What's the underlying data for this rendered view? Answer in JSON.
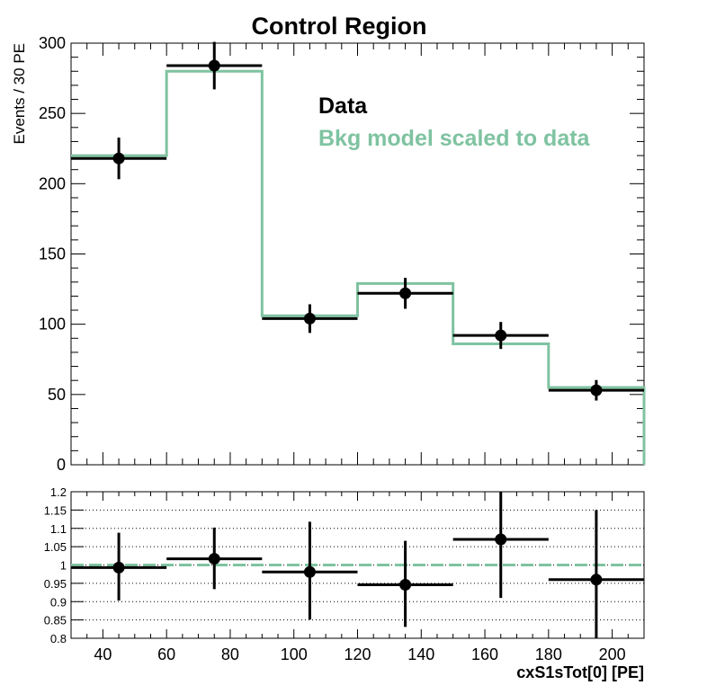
{
  "chart_data": [
    {
      "type": "line",
      "title": "Control Region",
      "ylabel": "Events / 30 PE",
      "xlabel": "",
      "xlim": [
        30,
        210
      ],
      "ylim": [
        0,
        300
      ],
      "x_ticks": [],
      "y_ticks": [
        "0",
        "50",
        "100",
        "150",
        "200",
        "250",
        "300"
      ],
      "legend_placement": "top-right",
      "legend": [
        {
          "label": "Data",
          "color": "#000000"
        },
        {
          "label": "Bkg model scaled to data",
          "color": "#7fc3a1"
        }
      ],
      "series": [
        {
          "name": "Data",
          "style": "points-with-errors",
          "color": "#000000",
          "bins": [
            {
              "x": 45,
              "xlo": 30,
              "xhi": 60,
              "y": 218,
              "err": 14.8
            },
            {
              "x": 75,
              "xlo": 60,
              "xhi": 90,
              "y": 284,
              "err": 16.9
            },
            {
              "x": 105,
              "xlo": 90,
              "xhi": 120,
              "y": 104,
              "err": 10.2
            },
            {
              "x": 135,
              "xlo": 120,
              "xhi": 150,
              "y": 122,
              "err": 11.0
            },
            {
              "x": 165,
              "xlo": 150,
              "xhi": 180,
              "y": 92,
              "err": 9.6
            },
            {
              "x": 195,
              "xlo": 180,
              "xhi": 210,
              "y": 53,
              "err": 7.3
            }
          ]
        },
        {
          "name": "Bkg model scaled to data",
          "style": "step-histogram",
          "color": "#7fc3a1",
          "edges": [
            30,
            60,
            90,
            120,
            150,
            180,
            210
          ],
          "values": [
            220,
            280,
            106,
            129,
            86,
            55
          ]
        }
      ]
    },
    {
      "type": "scatter",
      "title": "",
      "xlabel": "cxS1sTot[0]  [PE]",
      "ylabel": "",
      "xlim": [
        30,
        210
      ],
      "ylim": [
        0.8,
        1.2
      ],
      "x_ticks": [
        "40",
        "60",
        "80",
        "100",
        "120",
        "140",
        "160",
        "180",
        "200"
      ],
      "y_ticks": [
        "0.8",
        "0.85",
        "0.9",
        "0.95",
        "1",
        "1.05",
        "1.1",
        "1.15",
        "1.2"
      ],
      "grid": true,
      "reference_line": {
        "y": 1.0,
        "color": "#7fc3a1",
        "style": "dashed"
      },
      "series": [
        {
          "name": "",
          "color": "#000000",
          "bins": [
            {
              "x": 45,
              "xlo": 30,
              "xhi": 60,
              "y": 0.993,
              "elo": 0.09,
              "ehi": 0.095
            },
            {
              "x": 75,
              "xlo": 60,
              "xhi": 90,
              "y": 1.017,
              "elo": 0.083,
              "ehi": 0.085
            },
            {
              "x": 105,
              "xlo": 90,
              "xhi": 120,
              "y": 0.981,
              "elo": 0.13,
              "ehi": 0.137
            },
            {
              "x": 135,
              "xlo": 120,
              "xhi": 150,
              "y": 0.946,
              "elo": 0.115,
              "ehi": 0.12
            },
            {
              "x": 165,
              "xlo": 150,
              "xhi": 180,
              "y": 1.07,
              "elo": 0.16,
              "ehi": 0.17
            },
            {
              "x": 195,
              "xlo": 180,
              "xhi": 210,
              "y": 0.96,
              "elo": 0.17,
              "ehi": 0.19
            }
          ]
        }
      ]
    }
  ]
}
